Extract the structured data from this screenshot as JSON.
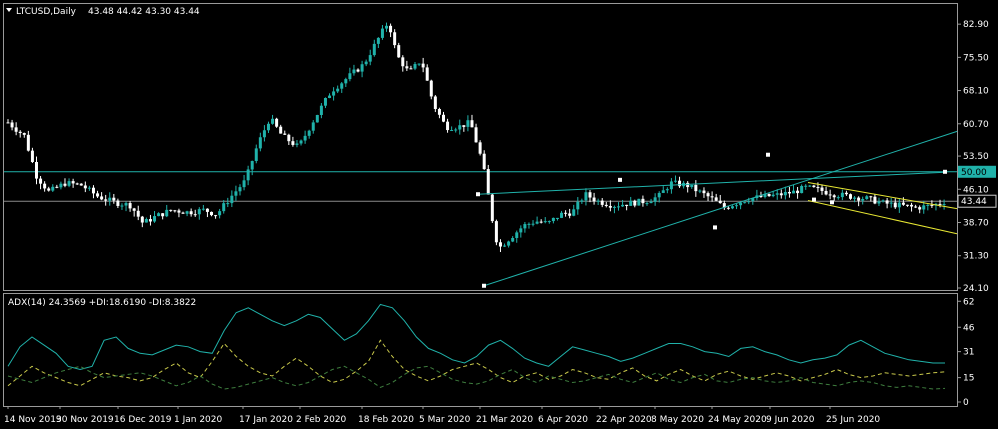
{
  "chart_data": [
    {
      "type": "candlestick",
      "symbol_label": "LTCUSD,Daily",
      "ohlc_label": "43.48 44.42 43.30 43.44",
      "y_ticks": [
        82.9,
        75.5,
        68.1,
        60.7,
        53.5,
        46.1,
        38.7,
        31.3,
        24.1
      ],
      "ylim": [
        24.1,
        86.5
      ],
      "price_tags": [
        "50.00",
        "43.44"
      ],
      "x_ticks": [
        "14 Nov 2019",
        "30 Nov 2019",
        "16 Dec 2019",
        "1 Jan 2020",
        "17 Jan 2020",
        "2 Feb 2020",
        "18 Feb 2020",
        "5 Mar 2020",
        "21 Mar 2020",
        "6 Apr 2020",
        "22 Apr 2020",
        "8 May 2020",
        "24 May 2020",
        "9 Jun 2020",
        "25 Jun 2020"
      ],
      "close_path": [
        [
          "2019-11-14",
          61.0
        ],
        [
          "2019-11-18",
          58.0
        ],
        [
          "2019-11-21",
          49.0
        ],
        [
          "2019-11-24",
          45.5
        ],
        [
          "2019-11-28",
          47.5
        ],
        [
          "2019-12-02",
          47.0
        ],
        [
          "2019-12-06",
          44.5
        ],
        [
          "2019-12-10",
          43.2
        ],
        [
          "2019-12-14",
          42.5
        ],
        [
          "2019-12-17",
          38.5
        ],
        [
          "2019-12-20",
          40.0
        ],
        [
          "2019-12-24",
          41.5
        ],
        [
          "2019-12-28",
          41.0
        ],
        [
          "2020-01-01",
          41.5
        ],
        [
          "2020-01-04",
          40.5
        ],
        [
          "2020-01-08",
          45.0
        ],
        [
          "2020-01-11",
          48.0
        ],
        [
          "2020-01-14",
          56.0
        ],
        [
          "2020-01-17",
          62.0
        ],
        [
          "2020-01-20",
          58.0
        ],
        [
          "2020-01-24",
          55.5
        ],
        [
          "2020-01-28",
          62.0
        ],
        [
          "2020-02-01",
          68.0
        ],
        [
          "2020-02-05",
          71.0
        ],
        [
          "2020-02-09",
          74.0
        ],
        [
          "2020-02-13",
          80.5
        ],
        [
          "2020-02-15",
          83.5
        ],
        [
          "2020-02-17",
          76.0
        ],
        [
          "2020-02-20",
          72.0
        ],
        [
          "2020-02-23",
          75.0
        ],
        [
          "2020-02-26",
          65.0
        ],
        [
          "2020-02-29",
          60.0
        ],
        [
          "2020-03-03",
          60.0
        ],
        [
          "2020-03-06",
          61.0
        ],
        [
          "2020-03-09",
          52.0
        ],
        [
          "2020-03-12",
          36.0
        ],
        [
          "2020-03-13",
          33.0
        ],
        [
          "2020-03-16",
          35.5
        ],
        [
          "2020-03-19",
          38.0
        ],
        [
          "2020-03-22",
          39.0
        ],
        [
          "2020-03-25",
          38.5
        ],
        [
          "2020-03-28",
          40.5
        ],
        [
          "2020-03-31",
          41.0
        ],
        [
          "2020-04-03",
          45.0
        ],
        [
          "2020-04-06",
          43.5
        ],
        [
          "2020-04-10",
          42.5
        ],
        [
          "2020-04-14",
          43.0
        ],
        [
          "2020-04-18",
          43.5
        ],
        [
          "2020-04-21",
          44.5
        ],
        [
          "2020-04-24",
          47.5
        ],
        [
          "2020-04-28",
          47.0
        ],
        [
          "2020-05-01",
          45.5
        ],
        [
          "2020-05-04",
          44.0
        ],
        [
          "2020-05-07",
          42.0
        ],
        [
          "2020-05-10",
          43.0
        ],
        [
          "2020-05-13",
          44.0
        ],
        [
          "2020-05-17",
          44.5
        ],
        [
          "2020-05-20",
          44.8
        ],
        [
          "2020-05-24",
          45.5
        ],
        [
          "2020-05-27",
          46.5
        ],
        [
          "2020-05-30",
          46.0
        ],
        [
          "2020-06-03",
          45.0
        ],
        [
          "2020-06-07",
          44.5
        ],
        [
          "2020-06-11",
          44.0
        ],
        [
          "2020-06-15",
          43.0
        ],
        [
          "2020-06-19",
          42.5
        ],
        [
          "2020-06-23",
          42.0
        ],
        [
          "2020-06-27",
          42.5
        ],
        [
          "2020-06-30",
          43.44
        ]
      ],
      "levels": [
        50.0,
        43.44
      ]
    },
    {
      "type": "line",
      "indicator_label": "ADX(14) 24.3569 +DI:18.6190 -DI:8.3822",
      "y_ticks": [
        62,
        46,
        31,
        15,
        0
      ],
      "ylim": [
        0,
        64
      ],
      "series": [
        {
          "name": "ADX(14)",
          "color": "#20b2aa",
          "dash": "solid",
          "values": [
            22,
            34,
            40,
            35,
            30,
            22,
            20,
            22,
            38,
            40,
            33,
            30,
            29,
            32,
            35,
            34,
            31,
            30,
            44,
            55,
            58,
            54,
            50,
            47,
            50,
            54,
            52,
            45,
            38,
            42,
            50,
            60,
            58,
            50,
            40,
            33,
            30,
            26,
            24,
            28,
            35,
            38,
            33,
            27,
            24,
            22,
            28,
            34,
            32,
            30,
            28,
            25,
            27,
            30,
            33,
            36,
            36,
            34,
            31,
            30,
            28,
            33,
            34,
            31,
            29,
            26,
            24,
            26,
            27,
            29,
            35,
            38,
            34,
            30,
            28,
            26,
            25,
            24,
            24
          ]
        },
        {
          "name": "+DI",
          "color": "#c8c84a",
          "dash": "4,3",
          "values": [
            10,
            16,
            22,
            18,
            15,
            12,
            10,
            14,
            18,
            16,
            15,
            13,
            15,
            20,
            24,
            18,
            15,
            25,
            36,
            28,
            22,
            18,
            16,
            22,
            27,
            22,
            16,
            12,
            14,
            19,
            25,
            38,
            28,
            20,
            16,
            13,
            16,
            20,
            22,
            24,
            20,
            15,
            12,
            16,
            18,
            14,
            16,
            20,
            18,
            15,
            14,
            18,
            21,
            16,
            13,
            17,
            20,
            16,
            13,
            17,
            19,
            16,
            14,
            16,
            18,
            16,
            13,
            15,
            17,
            20,
            17,
            15,
            16,
            18,
            17,
            16,
            17,
            18,
            18.6
          ]
        },
        {
          "name": "-DI",
          "color": "#3e7d3e",
          "dash": "4,3",
          "values": [
            16,
            14,
            12,
            15,
            18,
            20,
            22,
            18,
            15,
            16,
            17,
            18,
            16,
            13,
            10,
            12,
            16,
            11,
            8,
            9,
            11,
            13,
            15,
            12,
            10,
            12,
            16,
            20,
            22,
            18,
            14,
            9,
            12,
            17,
            21,
            22,
            18,
            14,
            12,
            11,
            13,
            17,
            20,
            15,
            12,
            16,
            14,
            12,
            13,
            15,
            17,
            14,
            12,
            15,
            18,
            14,
            12,
            15,
            17,
            13,
            12,
            14,
            15,
            13,
            12,
            13,
            15,
            12,
            11,
            10,
            12,
            13,
            12,
            10,
            9,
            10,
            9,
            8,
            8.4
          ]
        }
      ]
    }
  ]
}
